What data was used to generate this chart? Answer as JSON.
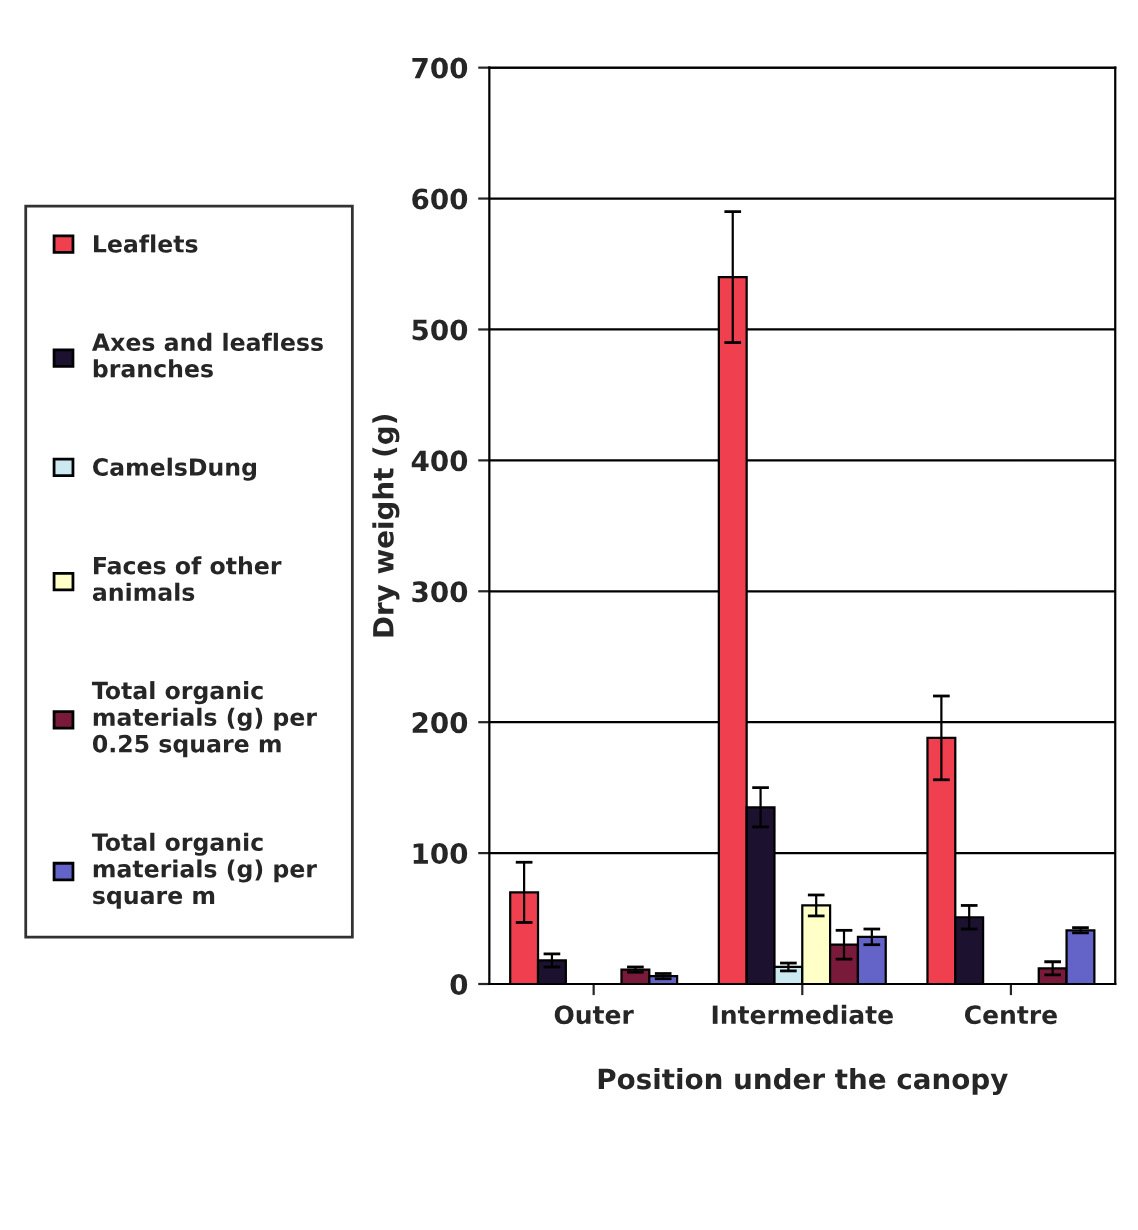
{
  "chart_data": {
    "type": "bar",
    "xlabel": "Position under the canopy",
    "ylabel": "Dry weight (g)",
    "categories": [
      "Outer",
      "Intermediate",
      "Centre"
    ],
    "series": [
      {
        "name": "Leaflets",
        "color": "#f0404f",
        "values": [
          70,
          540,
          188
        ],
        "errors": [
          23,
          50,
          32
        ]
      },
      {
        "name": "Axes and leafless branches",
        "color": "#1c1230",
        "values": [
          18,
          135,
          51
        ],
        "errors": [
          5,
          15,
          9
        ]
      },
      {
        "name": "CamelsDung",
        "color": "#cce8f0",
        "values": [
          null,
          13,
          null
        ],
        "errors": [
          null,
          3,
          null
        ]
      },
      {
        "name": "Faces of other animals",
        "color": "#ffffc8",
        "values": [
          null,
          60,
          null
        ],
        "errors": [
          null,
          8,
          null
        ]
      },
      {
        "name": "Total organic materials (g) per 0.25 square m",
        "color": "#7a1a3a",
        "values": [
          11,
          30,
          12
        ],
        "errors": [
          2,
          11,
          5
        ]
      },
      {
        "name": "Total organic materials (g) per square m",
        "color": "#6464c8",
        "values": [
          6,
          36,
          41
        ],
        "errors": [
          2,
          6,
          2
        ]
      }
    ],
    "ylim": [
      0,
      700
    ],
    "yticks": [
      0,
      100,
      200,
      300,
      400,
      500,
      600,
      700
    ],
    "grid": "y",
    "legend": "left"
  }
}
